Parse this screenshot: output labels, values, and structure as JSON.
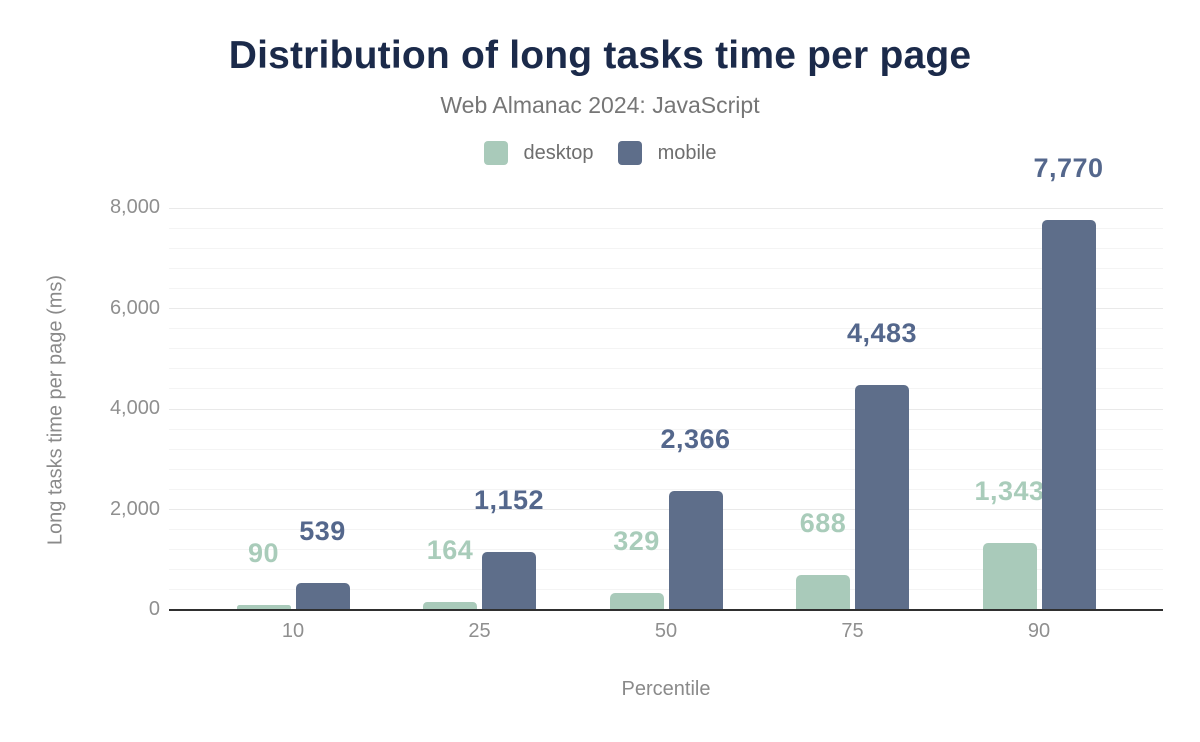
{
  "chart_data": {
    "type": "bar",
    "title": "Distribution of long tasks time per page",
    "subtitle": "Web Almanac 2024: JavaScript",
    "xlabel": "Percentile",
    "ylabel": "Long tasks time per page (ms)",
    "categories": [
      "10",
      "25",
      "50",
      "75",
      "90"
    ],
    "series": [
      {
        "name": "desktop",
        "values": [
          90,
          164,
          329,
          688,
          1343
        ],
        "color": "#a9caba",
        "label_color": "#a9ccba"
      },
      {
        "name": "mobile",
        "values": [
          539,
          1152,
          2366,
          4483,
          7770
        ],
        "color": "#5e6e8a",
        "label_color": "#54678c"
      }
    ],
    "ylim": [
      0,
      8000
    ],
    "yticks": [
      0,
      2000,
      4000,
      6000,
      8000
    ],
    "ytick_labels": [
      "0",
      "2,000",
      "4,000",
      "6,000",
      "8,000"
    ],
    "minor_grid_step": 400,
    "grid": "horizontal",
    "legend_position": "top",
    "value_labels": {
      "desktop": [
        "90",
        "164",
        "329",
        "688",
        "1,343"
      ],
      "mobile": [
        "539",
        "1,152",
        "2,366",
        "4,483",
        "7,770"
      ]
    },
    "colors": {
      "title": "#1b2a4a",
      "subtitle": "#767676",
      "legend_text": "#6e6e6e",
      "axis_text": "#8f8f8f",
      "axis_line": "#2f2f2f",
      "grid_minor": "#f4f4f4",
      "grid_major": "#e9e9e9",
      "background": "#ffffff"
    }
  }
}
